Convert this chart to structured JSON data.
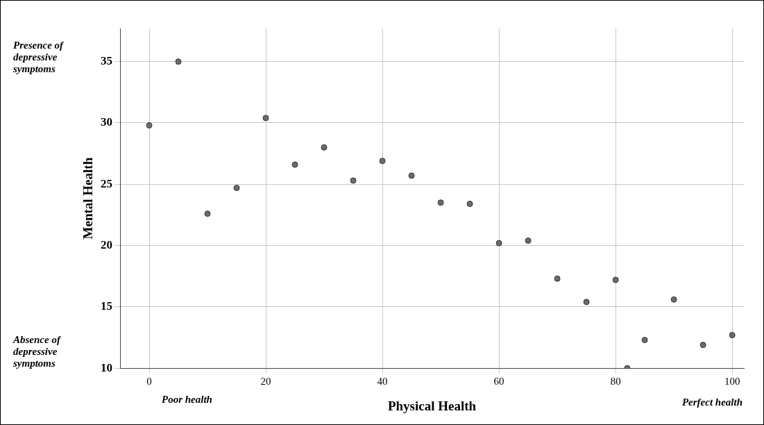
{
  "chart_data": {
    "type": "scatter",
    "xlabel": "Physical Health",
    "ylabel": "Mental Health",
    "x": [
      0,
      5,
      10,
      15,
      20,
      25,
      30,
      35,
      40,
      45,
      50,
      55,
      60,
      65,
      70,
      75,
      80,
      82,
      85,
      90,
      95,
      100
    ],
    "series": [
      {
        "color": "#6b6b6b",
        "values": [
          29.8,
          35.0,
          22.6,
          24.7,
          30.4,
          26.6,
          28.0,
          25.3,
          26.9,
          25.7,
          23.5,
          23.4,
          20.2,
          20.4,
          17.3,
          15.4,
          17.2,
          10.0,
          12.3,
          15.6,
          11.9,
          12.7
        ]
      }
    ],
    "xlim": [
      -5,
      102
    ],
    "ylim": [
      10,
      37.7
    ],
    "xticks": [
      0,
      20,
      40,
      60,
      80,
      100
    ],
    "yticks": [
      10,
      15,
      20,
      25,
      30,
      35
    ],
    "grid": true,
    "legend": false,
    "marker": "circle",
    "annotations": [
      "Presence of depressive symptoms",
      "Absence of depressive symptoms",
      "Poor health",
      "Perfect health"
    ]
  }
}
